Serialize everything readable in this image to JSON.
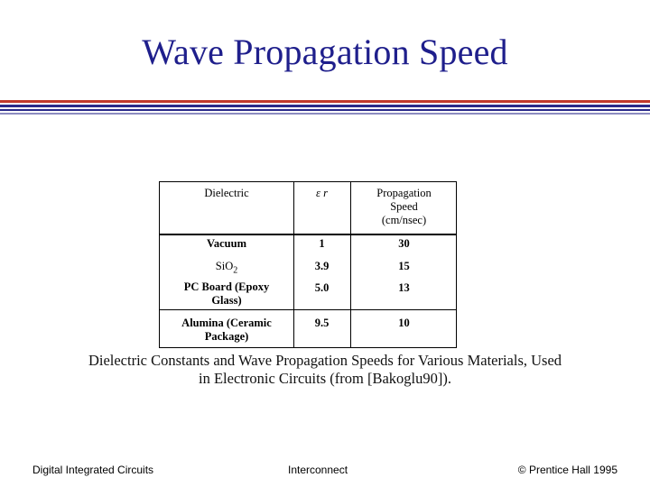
{
  "slide": {
    "title": "Wave Propagation Speed"
  },
  "table": {
    "headers": {
      "dielectric": "Dielectric",
      "er": "ε r",
      "speed_line1": "Propagation",
      "speed_line2": "Speed",
      "speed_line3": "(cm/nsec)"
    },
    "rows": [
      {
        "dielectric": "Vacuum",
        "er": "1",
        "speed": "30"
      },
      {
        "dielectric_main": "SiO",
        "dielectric_sub": "2",
        "er": "3.9",
        "speed": "15"
      },
      {
        "dielectric_line1": "PC Board (Epoxy",
        "dielectric_line2": "Glass)",
        "er": "5.0",
        "speed": "13"
      },
      {
        "dielectric_line1": "Alumina (Ceramic",
        "dielectric_line2": "Package)",
        "er": "9.5",
        "speed": "10"
      }
    ]
  },
  "caption": {
    "line1": "Dielectric Constants and Wave Propagation Speeds for Various Materials, Used",
    "line2": "in Electronic Circuits (from [Bakoglu90])."
  },
  "footer": {
    "left": "Digital Integrated Circuits",
    "center": "Interconnect",
    "right": "© Prentice Hall 1995"
  }
}
